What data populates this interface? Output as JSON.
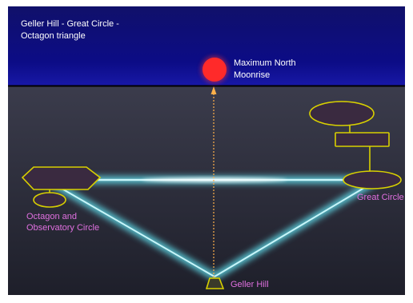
{
  "title_lines": [
    "Geller Hill - Great Circle -",
    "Octagon triangle"
  ],
  "labels": {
    "moonrise_lines": [
      "Maximum North",
      "Moonrise"
    ],
    "great_circle": "Great Circle",
    "octagon_lines": [
      "Octagon and",
      "Observatory Circle"
    ],
    "geller_hill": "Geller Hill"
  },
  "colors": {
    "sky": "#0b0b6e",
    "ground": "#2b2c3a",
    "moon": "#ff2a2a",
    "title_text": "#ffffff",
    "moonrise_text": "#ffffff",
    "label_text": "#e070e0",
    "glow": "#7fe6f0",
    "outline": "#d8d000",
    "sightline": "#ff9a2a"
  }
}
